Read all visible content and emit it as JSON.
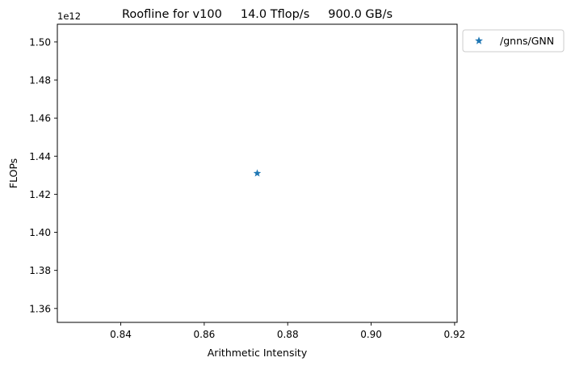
{
  "chart_data": {
    "type": "scatter",
    "title": "Roofline for v100     14.0 Tflop/s     900.0 GB/s",
    "xlabel": "Arithmetic Intensity",
    "ylabel": "FLOPs",
    "y_offset_label": "1e12",
    "xlim": [
      0.8248,
      0.9206
    ],
    "ylim": [
      1.3527,
      1.5093
    ],
    "xticks": [
      0.84,
      0.86,
      0.88,
      0.9,
      0.92
    ],
    "xtick_labels": [
      "0.84",
      "0.86",
      "0.88",
      "0.90",
      "0.92"
    ],
    "yticks": [
      1.36,
      1.38,
      1.4,
      1.42,
      1.44,
      1.46,
      1.48,
      1.5
    ],
    "ytick_labels": [
      "1.36",
      "1.38",
      "1.40",
      "1.42",
      "1.44",
      "1.46",
      "1.48",
      "1.50"
    ],
    "y_scale": 1000000000000.0,
    "grid": false,
    "legend_position": "outside-top-right",
    "series": [
      {
        "name": "/gnns/GNN",
        "marker": "star",
        "color": "#1f77b4",
        "points": [
          {
            "x": 0.8727,
            "y": 1.431
          }
        ]
      }
    ]
  }
}
